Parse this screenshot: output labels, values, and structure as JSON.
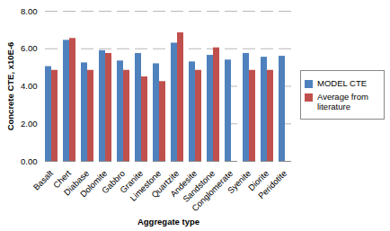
{
  "chart_data": {
    "type": "bar",
    "x_label": "Aggregate type",
    "y_label": "Concrete CTE, x10E-6",
    "categories": [
      "Basalt",
      "Chert",
      "Diabase",
      "Dolomite",
      "Gabbro",
      "Granite",
      "Limestone",
      "Quartzite",
      "Andesite",
      "Sandstone",
      "Conglomerate",
      "Syenite",
      "Diorite",
      "Peridotite"
    ],
    "series": [
      {
        "name": "MODEL CTE",
        "color": "#4f81bd",
        "values": [
          5.05,
          6.45,
          5.25,
          5.9,
          5.35,
          5.75,
          5.2,
          6.3,
          5.3,
          5.65,
          5.4,
          5.75,
          5.55,
          5.6
        ]
      },
      {
        "name": "Average from literature",
        "color": "#c0504d",
        "values": [
          4.85,
          6.55,
          4.85,
          5.75,
          4.85,
          4.5,
          4.25,
          6.85,
          4.85,
          6.05,
          null,
          4.85,
          4.85,
          null
        ]
      }
    ],
    "ylim": [
      0,
      8
    ],
    "yticks": [
      {
        "value": 0,
        "label": "0.00"
      },
      {
        "value": 2,
        "label": "2.00"
      },
      {
        "value": 4,
        "label": "4.00"
      },
      {
        "value": 6,
        "label": "6.00"
      },
      {
        "value": 8,
        "label": "8.00"
      }
    ],
    "grid": true,
    "legend": "right"
  }
}
